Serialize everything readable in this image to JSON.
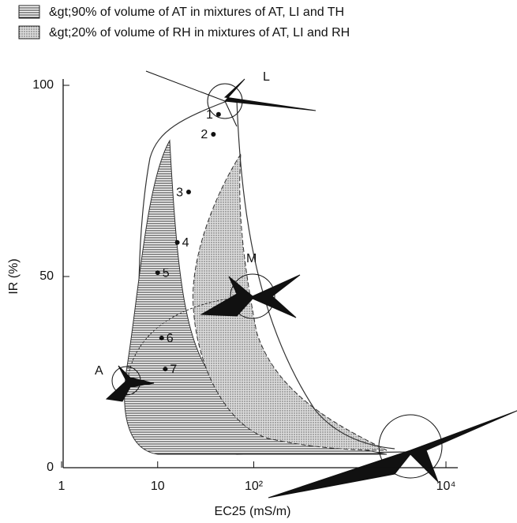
{
  "chart_data": {
    "type": "scatter",
    "legend": [
      "&gt;90% of volume of AT in mixtures of AT, LI and TH",
      "&gt;20% of volume of RH in mixtures of AT, LI and RH"
    ],
    "x_label": "EC25 (mS/m)",
    "y_label": "IR (%)",
    "xlog": true,
    "xlim": [
      1,
      10000
    ],
    "ylim": [
      0,
      100
    ],
    "xticks": [
      1,
      10,
      {
        "value": 100,
        "label": "10²"
      },
      {
        "value": 10000,
        "label": "10⁴"
      }
    ],
    "yticks": [
      0,
      50,
      100
    ],
    "point_labels": [
      "1",
      "2",
      "3",
      "4",
      "5",
      "6",
      "7"
    ],
    "x": [
      43,
      38,
      21,
      16,
      10,
      11,
      12
    ],
    "values": [
      92.4,
      87.2,
      72.1,
      58.9,
      51,
      33.9,
      25.8
    ],
    "color": "#111",
    "annotations": [
      "A",
      "L",
      "M"
    ]
  }
}
